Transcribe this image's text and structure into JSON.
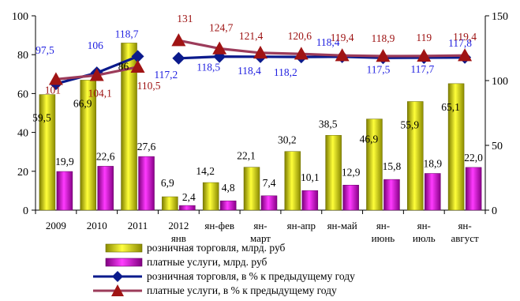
{
  "chart_data": {
    "type": "bar",
    "categories": [
      "2009",
      "2010",
      "2011",
      "2012 янв",
      "ян-фев",
      "ян-март",
      "ян-апр",
      "ян-май",
      "ян-июнь",
      "ян-июль",
      "ян-август"
    ],
    "category_lines": [
      [
        "2009"
      ],
      [
        "2010"
      ],
      [
        "2011"
      ],
      [
        "2012",
        "янв"
      ],
      [
        "ян-фев"
      ],
      [
        "ян-",
        "март"
      ],
      [
        "ян-апр"
      ],
      [
        "ян-май"
      ],
      [
        "ян-",
        "июнь"
      ],
      [
        "ян-",
        "июль"
      ],
      [
        "ян-",
        "август"
      ]
    ],
    "y_left": {
      "lim": [
        0,
        100
      ],
      "ticks": [
        0,
        20,
        40,
        60,
        80,
        100
      ]
    },
    "y_right": {
      "lim": [
        0,
        150
      ],
      "ticks": [
        0,
        50,
        100,
        150
      ]
    },
    "grid": false,
    "legend_position": "bottom",
    "series": [
      {
        "name": "розничная торговля, млрд. руб",
        "kind": "bar",
        "axis": "left",
        "color": "#e0e000",
        "values": [
          59.5,
          66.9,
          86.0,
          6.9,
          14.2,
          22.1,
          30.2,
          38.5,
          46.9,
          55.9,
          65.1
        ],
        "labels": [
          "59,5",
          "66,9",
          "86",
          "6,9",
          "14,2",
          "22,1",
          "30,2",
          "38,5",
          "46,9",
          "55,9",
          "65,1"
        ]
      },
      {
        "name": "платные услуги, млрд. руб",
        "kind": "bar",
        "axis": "left",
        "color": "#cc00cc",
        "values": [
          19.9,
          22.6,
          27.6,
          2.4,
          4.8,
          7.4,
          10.1,
          12.9,
          15.8,
          18.9,
          22.0
        ],
        "labels": [
          "19,9",
          "22,6",
          "27,6",
          "2,4",
          "4,8",
          "7,4",
          "10,1",
          "12,9",
          "15,8",
          "18,9",
          "22,0"
        ]
      },
      {
        "name": "розничная торговля, в % к предыдущему году",
        "kind": "line",
        "marker": "diamond",
        "axis": "right",
        "color": "#0a1a8c",
        "label_color": "#1f1fe0",
        "values": [
          97.5,
          106.0,
          118.7,
          117.2,
          118.5,
          118.4,
          118.2,
          118.4,
          117.5,
          117.7,
          117.8
        ],
        "labels": [
          "97,5",
          "106",
          "118,7",
          "117,2",
          "118,5",
          "118,4",
          "118,2",
          "118,4",
          "117,5",
          "117,7",
          "117,8"
        ]
      },
      {
        "name": "платные услуги, в % к предыдущему году",
        "kind": "line",
        "marker": "triangle",
        "axis": "right",
        "color": "#9c3b5a",
        "label_color": "#9c1010",
        "values": [
          101.0,
          104.1,
          110.5,
          131.0,
          124.7,
          121.4,
          120.6,
          119.4,
          118.9,
          119.0,
          119.4
        ],
        "labels": [
          "101",
          "104,1",
          "110,5",
          "131",
          "124,7",
          "121,4",
          "120,6",
          "119,4",
          "118,9",
          "119",
          "119,4"
        ]
      }
    ]
  }
}
